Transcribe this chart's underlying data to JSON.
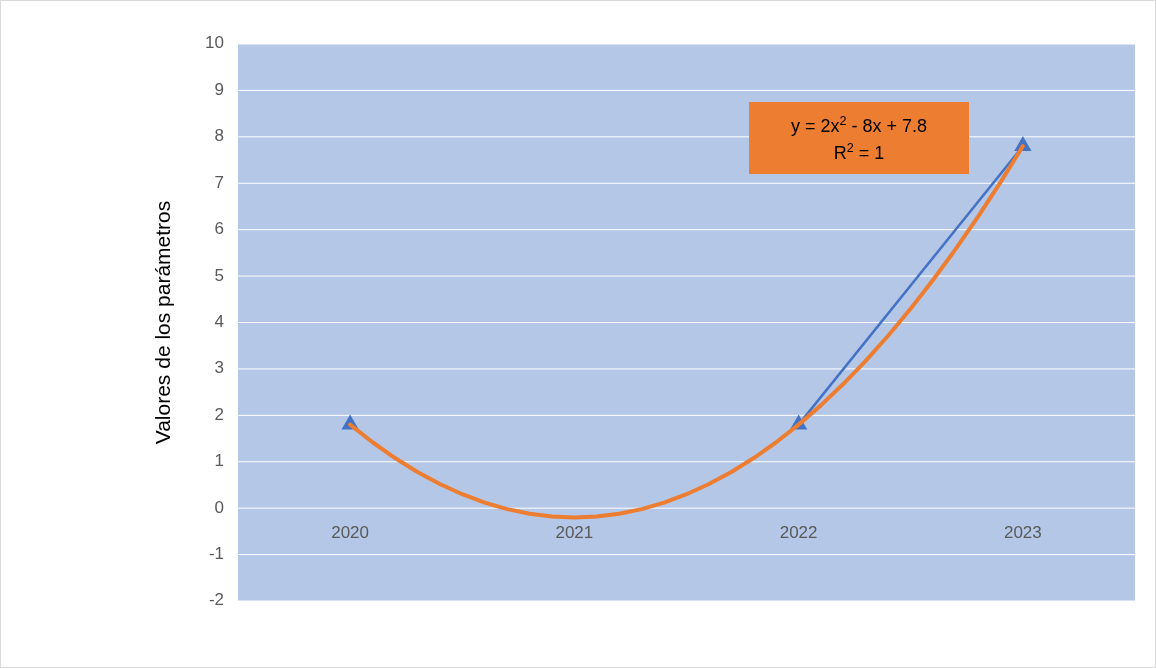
{
  "chart_data": {
    "type": "line",
    "ylabel": "Valores de los parámetros",
    "x": [
      2020,
      2021,
      2022,
      2023
    ],
    "xlim": [
      2019.5,
      2023.5
    ],
    "xticks": [
      2020,
      2021,
      2022,
      2023
    ],
    "ylim": [
      -2,
      10
    ],
    "yticks": [
      -2,
      -1,
      0,
      1,
      2,
      3,
      4,
      5,
      6,
      7,
      8,
      9,
      10
    ],
    "grid": "y",
    "series": [
      {
        "color": "#4472c4",
        "values": [
          1.8,
          null,
          1.8,
          7.8
        ],
        "marker": "triangle"
      },
      {
        "type": "line",
        "color": "#ed7d31",
        "x": [
          2020,
          2020.1,
          2020.2,
          2020.3,
          2020.4,
          2020.5,
          2020.6,
          2020.7,
          2020.8,
          2020.9,
          2021,
          2021.1,
          2021.2,
          2021.3,
          2021.4,
          2021.5,
          2021.6,
          2021.7,
          2021.8,
          2021.9,
          2022,
          2022.1,
          2022.2,
          2022.3,
          2022.4,
          2022.5,
          2022.6,
          2022.7,
          2022.8,
          2022.9,
          2023
        ],
        "values": [
          1.8,
          1.42,
          1.08,
          0.78,
          0.52,
          0.3,
          0.12,
          -0.02,
          -0.12,
          -0.18,
          -0.2,
          -0.18,
          -0.12,
          -0.02,
          0.12,
          0.3,
          0.52,
          0.78,
          1.08,
          1.42,
          1.8,
          2.22,
          2.68,
          3.18,
          3.72,
          4.3,
          4.92,
          5.58,
          6.28,
          7.02,
          7.8
        ],
        "marker": "none"
      }
    ],
    "annotations": [
      "y = 2x$^{2}$ - 8x + 7.8",
      "R$^{2}$ = 1"
    ]
  }
}
